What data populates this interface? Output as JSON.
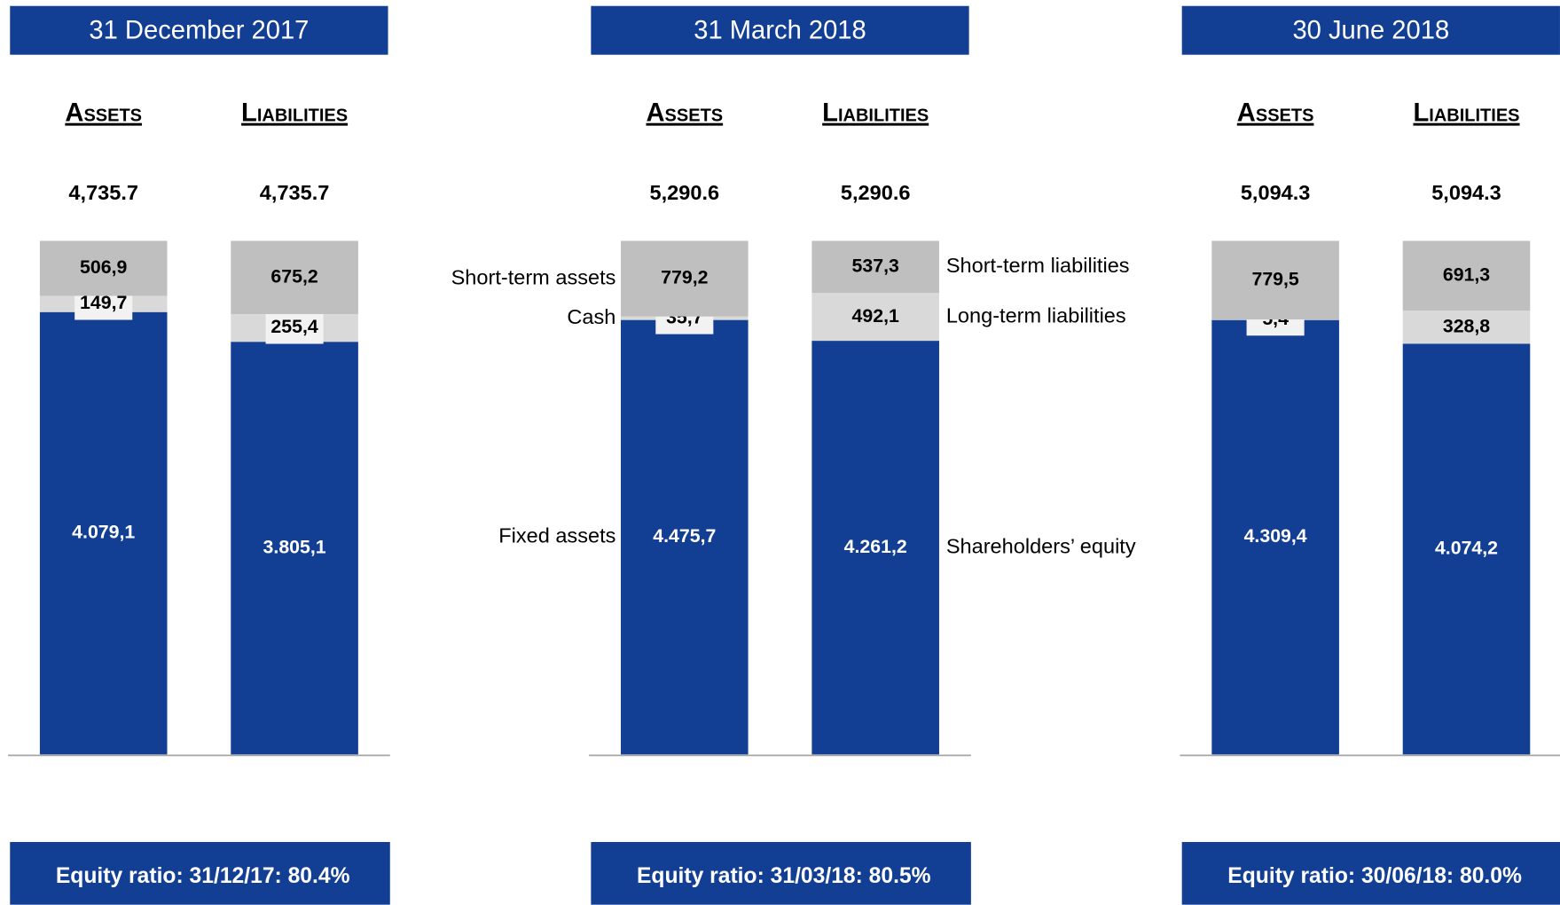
{
  "chart_data": [
    {
      "type": "stacked-bar",
      "title": "31 December 2017",
      "footer": "Equity ratio: 31/12/17: 80.4%",
      "bars": [
        {
          "category": "Assets",
          "total": {
            "value": 4735.7,
            "label": "4,735.7"
          },
          "segments": [
            {
              "value": 4079.1,
              "label": "4.079,1",
              "color": "#123f94"
            },
            {
              "value": 149.7,
              "label": "149,7",
              "color": "#d9d9d9"
            },
            {
              "value": 506.9,
              "label": "506,9",
              "color": "#bfbfbf"
            }
          ]
        },
        {
          "category": "Liabilities",
          "total": {
            "value": 4735.7,
            "label": "4,735.7"
          },
          "segments": [
            {
              "value": 3805.1,
              "label": "3.805,1",
              "color": "#123f94"
            },
            {
              "value": 255.4,
              "label": "255,4",
              "color": "#d9d9d9"
            },
            {
              "value": 675.2,
              "label": "675,2",
              "color": "#bfbfbf"
            }
          ]
        }
      ]
    },
    {
      "type": "stacked-bar",
      "title": "31 March 2018",
      "footer": "Equity ratio: 31/03/18: 80.5%",
      "bars": [
        {
          "category": "Assets",
          "total": {
            "value": 5290.6,
            "label": "5,290.6"
          },
          "segments": [
            {
              "name": "Fixed assets",
              "value": 4475.7,
              "label": "4.475,7",
              "color": "#123f94"
            },
            {
              "name": "Cash",
              "value": 35.7,
              "label": "35,7",
              "color": "#d9d9d9"
            },
            {
              "name": "Short-term assets",
              "value": 779.2,
              "label": "779,2",
              "color": "#bfbfbf"
            }
          ]
        },
        {
          "category": "Liabilities",
          "total": {
            "value": 5290.6,
            "label": "5,290.6"
          },
          "segments": [
            {
              "name": "Shareholders’ equity",
              "value": 4261.2,
              "label": "4.261,2",
              "color": "#123f94"
            },
            {
              "name": "Long-term liabilities",
              "value": 492.1,
              "label": "492,1",
              "color": "#d9d9d9"
            },
            {
              "name": "Short-term liabilities",
              "value": 537.3,
              "label": "537,3",
              "color": "#bfbfbf"
            }
          ]
        }
      ]
    },
    {
      "type": "stacked-bar",
      "title": "30 June 2018",
      "footer": "Equity ratio: 30/06/18: 80.0%",
      "bars": [
        {
          "category": "Assets",
          "total": {
            "value": 5094.3,
            "label": "5,094.3"
          },
          "segments": [
            {
              "value": 4309.4,
              "label": "4.309,4",
              "color": "#123f94"
            },
            {
              "value": 5.4,
              "label": "5,4",
              "color": "#d9d9d9"
            },
            {
              "value": 779.5,
              "label": "779,5",
              "color": "#bfbfbf"
            }
          ]
        },
        {
          "category": "Liabilities",
          "total": {
            "value": 5094.3,
            "label": "5,094.3"
          },
          "segments": [
            {
              "value": 4074.2,
              "label": "4.074,2",
              "color": "#123f94"
            },
            {
              "value": 328.8,
              "label": "328,8",
              "color": "#d9d9d9"
            },
            {
              "value": 691.3,
              "label": "691,3",
              "color": "#bfbfbf"
            }
          ]
        }
      ]
    }
  ]
}
